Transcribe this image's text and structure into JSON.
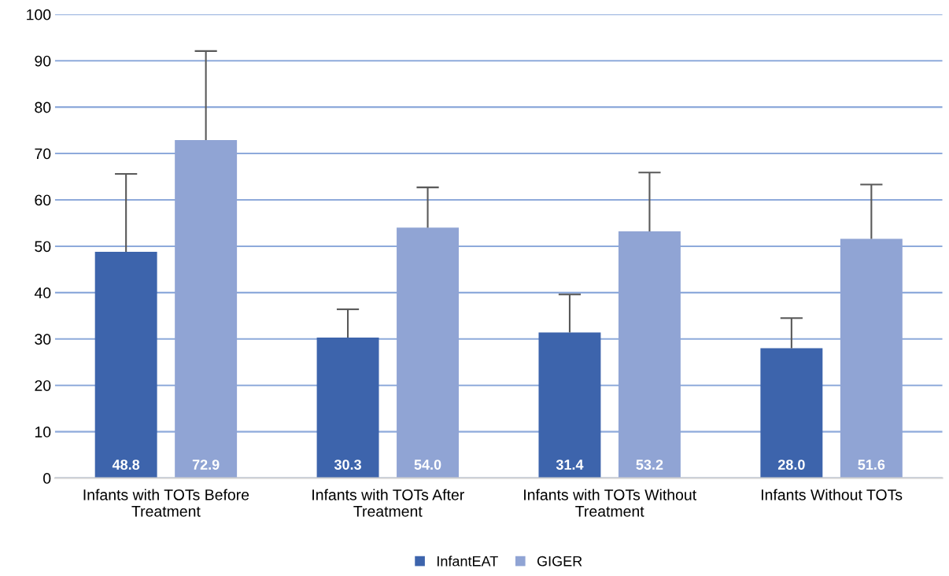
{
  "chart_data": {
    "type": "bar",
    "categories": [
      "Infants with TOTs Before Treatment",
      "Infants with TOTs After Treatment",
      "Infants with TOTs Without Treatment",
      "Infants Without TOTs"
    ],
    "series": [
      {
        "name": "InfantEAT",
        "color": "#3d64ac",
        "values": [
          48.8,
          30.3,
          31.4,
          28.0
        ],
        "value_labels": [
          "48.8",
          "30.3",
          "31.4",
          "28.0"
        ],
        "errors": [
          [
            48.8,
            65.6
          ],
          [
            30.3,
            36.4
          ],
          [
            31.4,
            39.6
          ],
          [
            28.0,
            34.5
          ]
        ]
      },
      {
        "name": "GIGER",
        "color": "#90a4d4",
        "values": [
          72.9,
          54.0,
          53.2,
          51.6
        ],
        "value_labels": [
          "72.9",
          "54.0",
          "53.2",
          "51.6"
        ],
        "errors": [
          [
            72.9,
            92.1
          ],
          [
            54.0,
            62.7
          ],
          [
            53.2,
            65.9
          ],
          [
            51.6,
            63.3
          ]
        ]
      }
    ],
    "ylim": [
      0,
      100
    ],
    "yticks": [
      0,
      10,
      20,
      30,
      40,
      50,
      60,
      70,
      80,
      90,
      100
    ],
    "grid": "y",
    "legend": "bottom"
  }
}
